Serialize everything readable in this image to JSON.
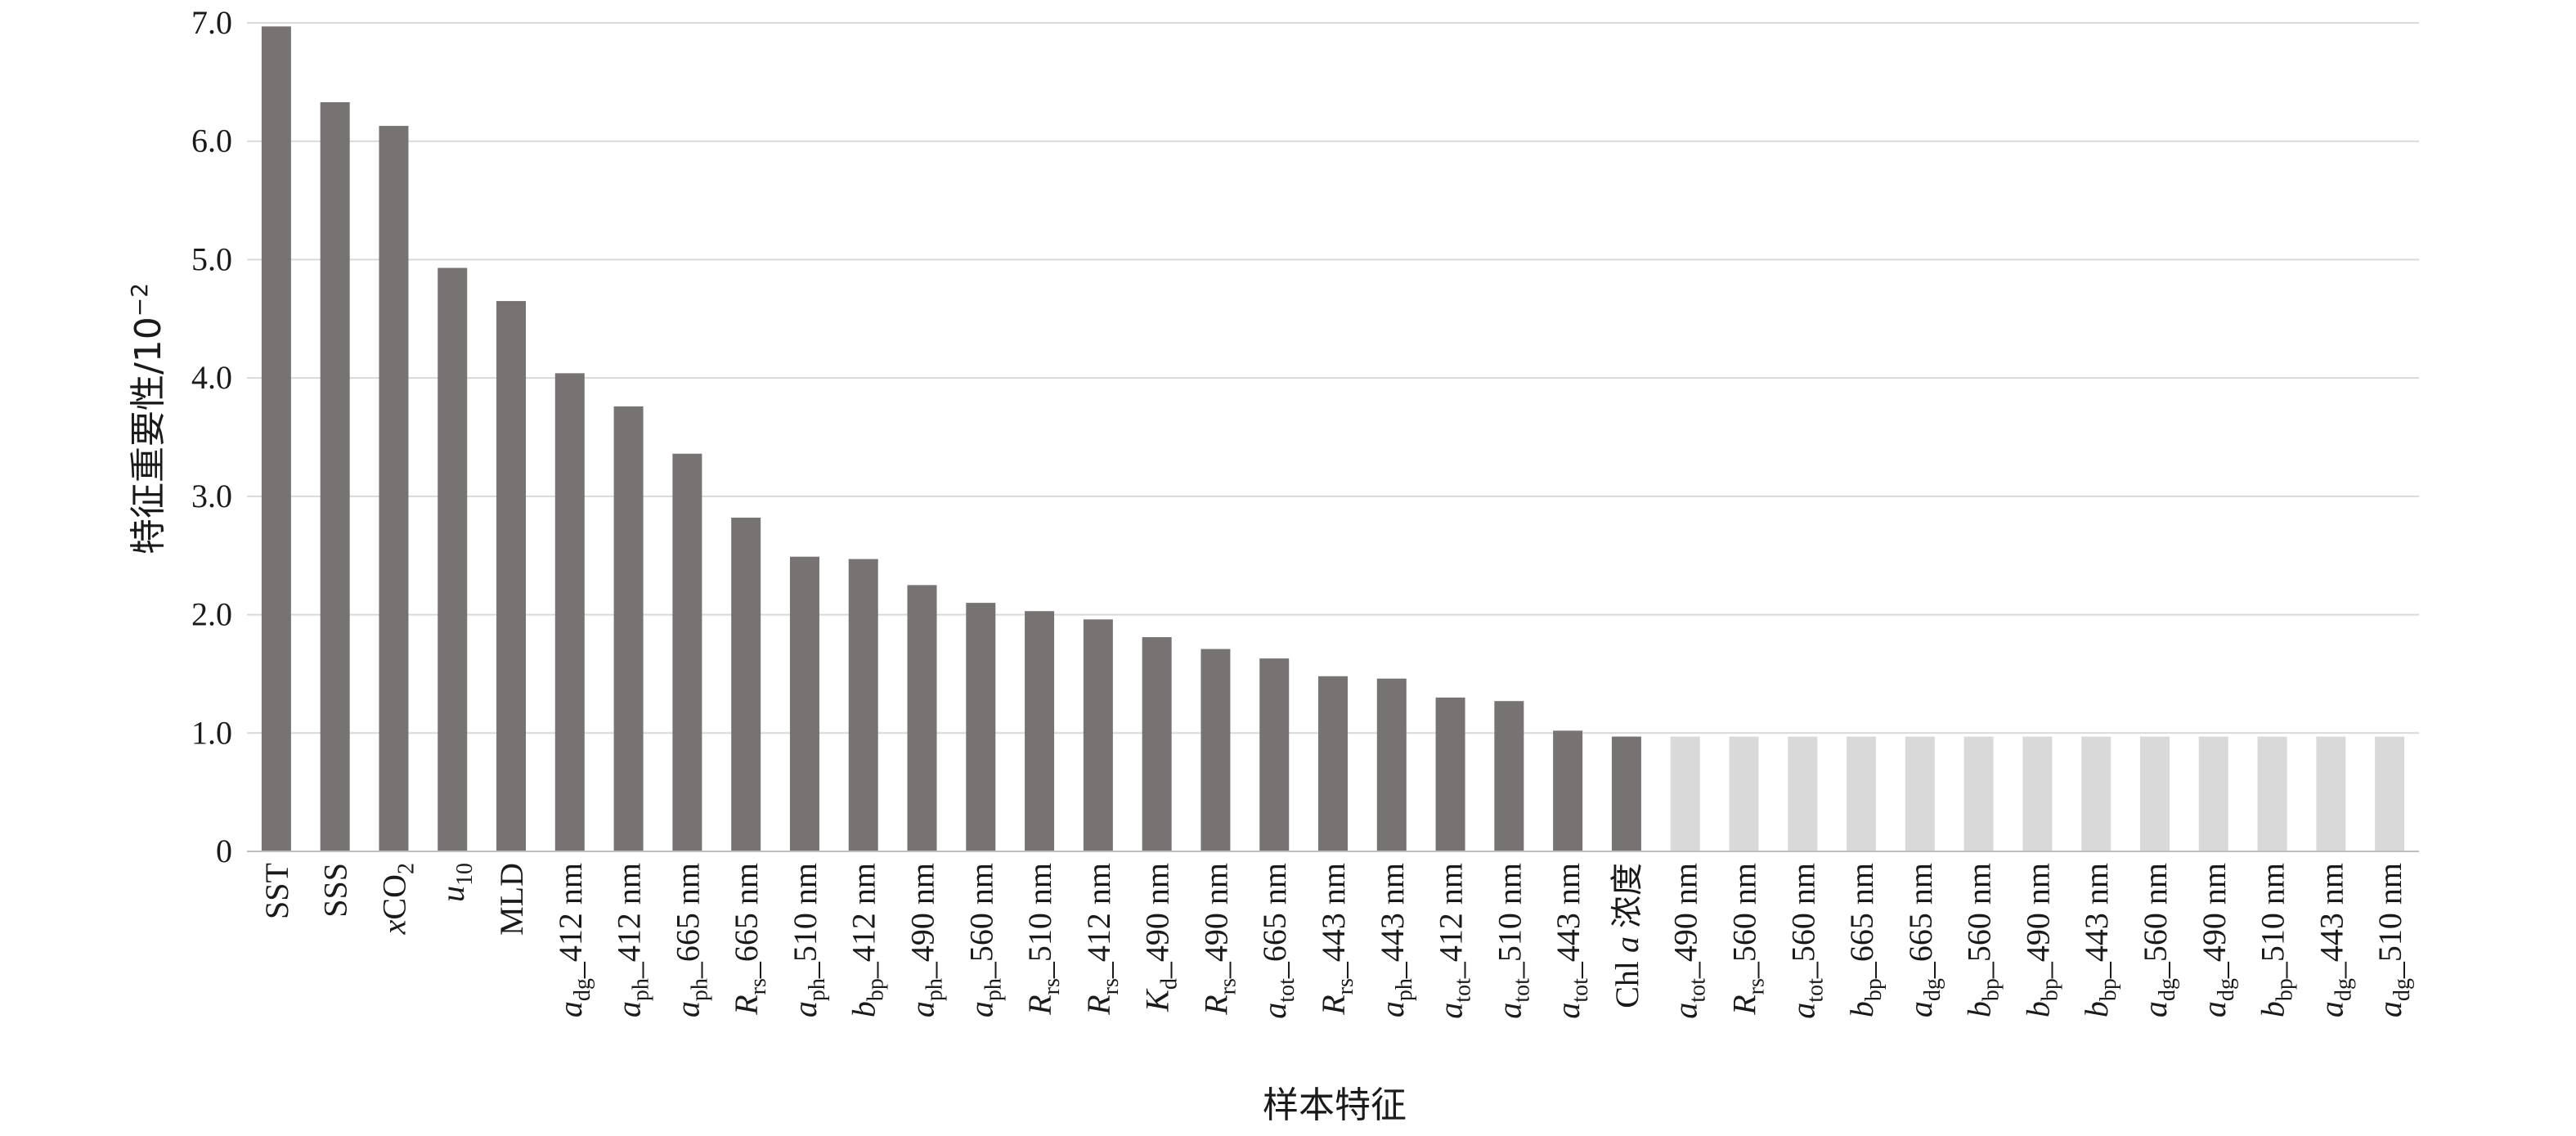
{
  "chart_data": {
    "type": "bar",
    "title": "",
    "ylabel": "特征重要性/10",
    "ylabel_exp": "−2",
    "xlabel": "样本特征",
    "ylim": [
      0,
      7.0
    ],
    "yticks": [
      "0",
      "1.0",
      "2.0",
      "3.0",
      "4.0",
      "5.0",
      "6.0",
      "7.0"
    ],
    "grid": true,
    "colors": {
      "selected": "#777373",
      "unselected": "#d9d9d9",
      "grid": "#d9d9d9",
      "text": "#1a1a1a"
    },
    "categories": [
      [
        [
          "SST",
          ""
        ]
      ],
      [
        [
          "SSS",
          ""
        ]
      ],
      [
        [
          "x",
          "i"
        ],
        [
          "CO",
          ""
        ],
        [
          "2",
          "sub"
        ]
      ],
      [
        [
          "u",
          "i"
        ],
        [
          "10",
          "sub"
        ]
      ],
      [
        [
          "MLD",
          ""
        ]
      ],
      [
        [
          "a",
          "i"
        ],
        [
          "dg",
          "sub"
        ],
        [
          "_412 nm",
          ""
        ]
      ],
      [
        [
          "a",
          "i"
        ],
        [
          "ph",
          "sub"
        ],
        [
          "_412 nm",
          ""
        ]
      ],
      [
        [
          "a",
          "i"
        ],
        [
          "ph",
          "sub"
        ],
        [
          "_665 nm",
          ""
        ]
      ],
      [
        [
          "R",
          "i"
        ],
        [
          "rs",
          "sub"
        ],
        [
          "_665 nm",
          ""
        ]
      ],
      [
        [
          "a",
          "i"
        ],
        [
          "ph",
          "sub"
        ],
        [
          "_510 nm",
          ""
        ]
      ],
      [
        [
          "b",
          "i"
        ],
        [
          "bp",
          "sub"
        ],
        [
          "_412 nm",
          ""
        ]
      ],
      [
        [
          "a",
          "i"
        ],
        [
          "ph",
          "sub"
        ],
        [
          "_490 nm",
          ""
        ]
      ],
      [
        [
          "a",
          "i"
        ],
        [
          "ph",
          "sub"
        ],
        [
          "_560 nm",
          ""
        ]
      ],
      [
        [
          "R",
          "i"
        ],
        [
          "rs",
          "sub"
        ],
        [
          "_510 nm",
          ""
        ]
      ],
      [
        [
          "R",
          "i"
        ],
        [
          "rs",
          "sub"
        ],
        [
          "_412 nm",
          ""
        ]
      ],
      [
        [
          "K",
          "i"
        ],
        [
          "d",
          "sub"
        ],
        [
          "_490 nm",
          ""
        ]
      ],
      [
        [
          "R",
          "i"
        ],
        [
          "rs",
          "sub"
        ],
        [
          "_490 nm",
          ""
        ]
      ],
      [
        [
          "a",
          "i"
        ],
        [
          "tot",
          "sub"
        ],
        [
          "_665 nm",
          ""
        ]
      ],
      [
        [
          "R",
          "i"
        ],
        [
          "rs",
          "sub"
        ],
        [
          "_443 nm",
          ""
        ]
      ],
      [
        [
          "a",
          "i"
        ],
        [
          "ph",
          "sub"
        ],
        [
          "_443 nm",
          ""
        ]
      ],
      [
        [
          "a",
          "i"
        ],
        [
          "tot",
          "sub"
        ],
        [
          "_412 nm",
          ""
        ]
      ],
      [
        [
          "a",
          "i"
        ],
        [
          "tot",
          "sub"
        ],
        [
          "_510 nm",
          ""
        ]
      ],
      [
        [
          "a",
          "i"
        ],
        [
          "tot",
          "sub"
        ],
        [
          "_443 nm",
          ""
        ]
      ],
      [
        [
          "Chl ",
          ""
        ],
        [
          "a",
          "i"
        ],
        [
          " 浓度",
          ""
        ]
      ],
      [
        [
          "a",
          "i"
        ],
        [
          "tot",
          "sub"
        ],
        [
          "_490 nm",
          ""
        ]
      ],
      [
        [
          "R",
          "i"
        ],
        [
          "rs",
          "sub"
        ],
        [
          "_560 nm",
          ""
        ]
      ],
      [
        [
          "a",
          "i"
        ],
        [
          "tot",
          "sub"
        ],
        [
          "_560 nm",
          ""
        ]
      ],
      [
        [
          "b",
          "i"
        ],
        [
          "bp",
          "sub"
        ],
        [
          "_665 nm",
          ""
        ]
      ],
      [
        [
          "a",
          "i"
        ],
        [
          "dg",
          "sub"
        ],
        [
          "_665 nm",
          ""
        ]
      ],
      [
        [
          "b",
          "i"
        ],
        [
          "bp",
          "sub"
        ],
        [
          "_560 nm",
          ""
        ]
      ],
      [
        [
          "b",
          "i"
        ],
        [
          "bp",
          "sub"
        ],
        [
          "_490 nm",
          ""
        ]
      ],
      [
        [
          "b",
          "i"
        ],
        [
          "bp",
          "sub"
        ],
        [
          "_443 nm",
          ""
        ]
      ],
      [
        [
          "a",
          "i"
        ],
        [
          "dg",
          "sub"
        ],
        [
          "_560 nm",
          ""
        ]
      ],
      [
        [
          "a",
          "i"
        ],
        [
          "dg",
          "sub"
        ],
        [
          "_490 nm",
          ""
        ]
      ],
      [
        [
          "b",
          "i"
        ],
        [
          "bp",
          "sub"
        ],
        [
          "_510 nm",
          ""
        ]
      ],
      [
        [
          "a",
          "i"
        ],
        [
          "dg",
          "sub"
        ],
        [
          "_443 nm",
          ""
        ]
      ],
      [
        [
          "a",
          "i"
        ],
        [
          "dg",
          "sub"
        ],
        [
          "_510 nm",
          ""
        ]
      ]
    ],
    "values": [
      6.97,
      6.33,
      6.13,
      4.93,
      4.65,
      4.04,
      3.76,
      3.36,
      2.82,
      2.49,
      2.47,
      2.25,
      2.1,
      2.03,
      1.96,
      1.81,
      1.71,
      1.63,
      1.48,
      1.46,
      1.3,
      1.27,
      1.02,
      0.97,
      0.97,
      0.97,
      0.97,
      0.97,
      0.97,
      0.97,
      0.97,
      0.97,
      0.97,
      0.97,
      0.97,
      0.97,
      0.97
    ],
    "selected_count": 24
  }
}
